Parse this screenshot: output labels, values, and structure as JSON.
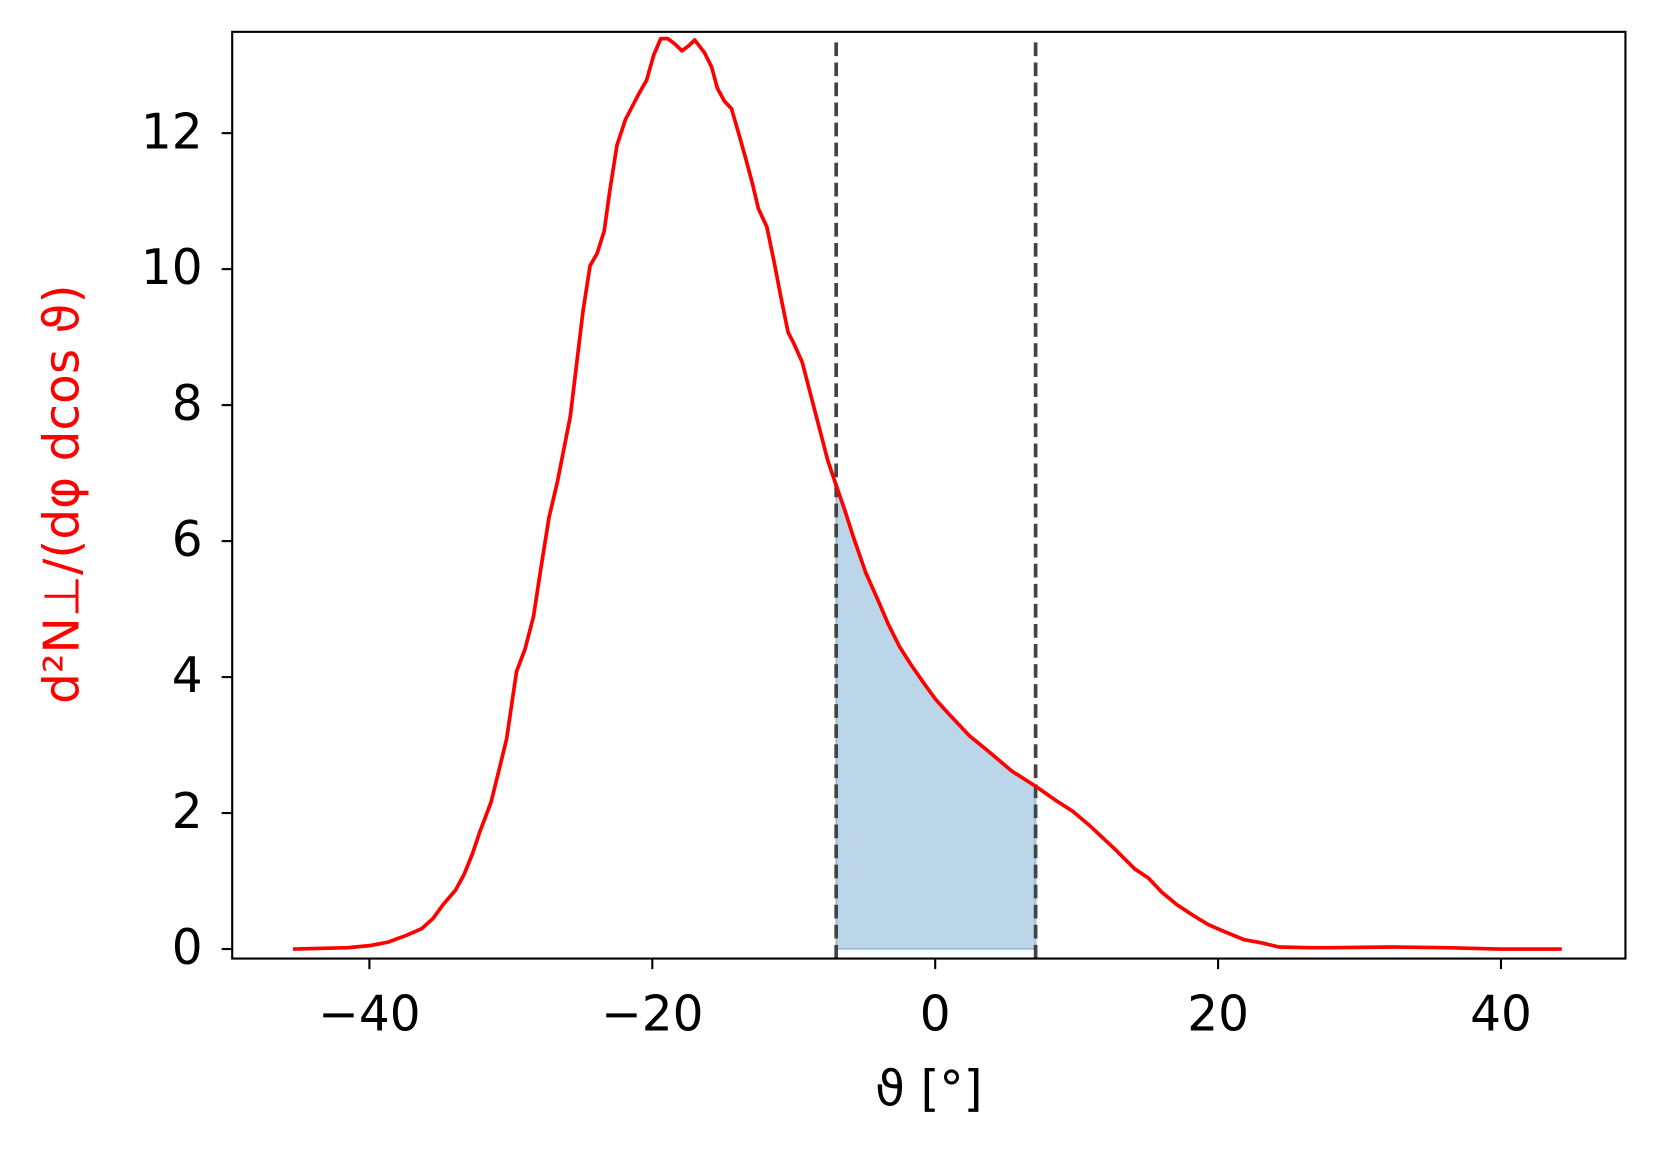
{
  "chart_data": {
    "type": "line",
    "xlabel": "ϑ [°]",
    "ylabel": "d²N⊥/(dφ dcos ϑ)",
    "ylabel_color": "#ff0000",
    "x": [
      -45.4,
      -41.5,
      -40,
      -38.7,
      -37.4,
      -36.3,
      -35.5,
      -34.8,
      -33.9,
      -33.3,
      -32.7,
      -32.2,
      -31.4,
      -30.9,
      -30.3,
      -29.6,
      -29.0,
      -28.4,
      -27.9,
      -27.3,
      -26.7,
      -26.2,
      -25.8,
      -25.4,
      -24.9,
      -24.4,
      -23.9,
      -23.4,
      -23.0,
      -22.5,
      -21.9,
      -21.5,
      -21.0,
      -20.4,
      -19.9,
      -19.4,
      -18.9,
      -18.4,
      -17.9,
      -17.4,
      -17.0,
      -16.3,
      -15.8,
      -15.4,
      -14.9,
      -14.4,
      -13.9,
      -13.4,
      -12.9,
      -12.5,
      -11.9,
      -11.4,
      -10.9,
      -10.4,
      -10.0,
      -9.4,
      -8.8,
      -8.2,
      -7.6,
      -7.0,
      -6.4,
      -5.8,
      -4.9,
      -4.0,
      -3.3,
      -2.5,
      -1.8,
      -0.9,
      0,
      1.0,
      2.4,
      3.7,
      5.4,
      7.2,
      8.5,
      9.7,
      10.9,
      12.6,
      14.1,
      15.1,
      16.0,
      17.1,
      18.2,
      19.3,
      20.4,
      21.8,
      23.1,
      24.3,
      26.4,
      27.9,
      32.4,
      36.1,
      39.9,
      44.3
    ],
    "series": [
      {
        "color": "#ff0000",
        "values": [
          0,
          0.02,
          0.05,
          0.1,
          0.2,
          0.3,
          0.45,
          0.65,
          0.87,
          1.1,
          1.41,
          1.72,
          2.16,
          2.58,
          3.09,
          4.08,
          4.41,
          4.89,
          5.57,
          6.35,
          6.88,
          7.41,
          7.83,
          8.52,
          9.38,
          10.05,
          10.23,
          10.56,
          11.16,
          11.82,
          12.2,
          12.36,
          12.56,
          12.78,
          13.15,
          13.39,
          13.39,
          13.31,
          13.21,
          13.29,
          13.37,
          13.18,
          12.97,
          12.66,
          12.47,
          12.36,
          12.0,
          11.63,
          11.24,
          10.89,
          10.62,
          10.12,
          9.58,
          9.07,
          8.91,
          8.63,
          8.15,
          7.67,
          7.19,
          6.82,
          6.46,
          6.07,
          5.53,
          5.11,
          4.77,
          4.44,
          4.21,
          3.94,
          3.68,
          3.45,
          3.14,
          2.92,
          2.62,
          2.38,
          2.19,
          2.03,
          1.82,
          1.49,
          1.18,
          1.04,
          0.84,
          0.65,
          0.5,
          0.36,
          0.26,
          0.14,
          0.09,
          0.03,
          0.02,
          0.02,
          0.03,
          0.02,
          0,
          0
        ]
      }
    ],
    "shade": [
      -7.0,
      7.1
    ],
    "shade_color": "#1f77b4",
    "vlines": [
      -7.0,
      7.1
    ],
    "vline_color": "#444444",
    "xlim": [
      -49.7,
      48.8
    ],
    "xticks": [
      {
        "value": -40,
        "label": "−40"
      },
      {
        "value": -20,
        "label": "−20"
      },
      0,
      20,
      40
    ],
    "ylim": [
      -0.14,
      13.49
    ],
    "yticks": [
      0,
      2,
      4,
      6,
      8,
      10,
      12
    ]
  }
}
